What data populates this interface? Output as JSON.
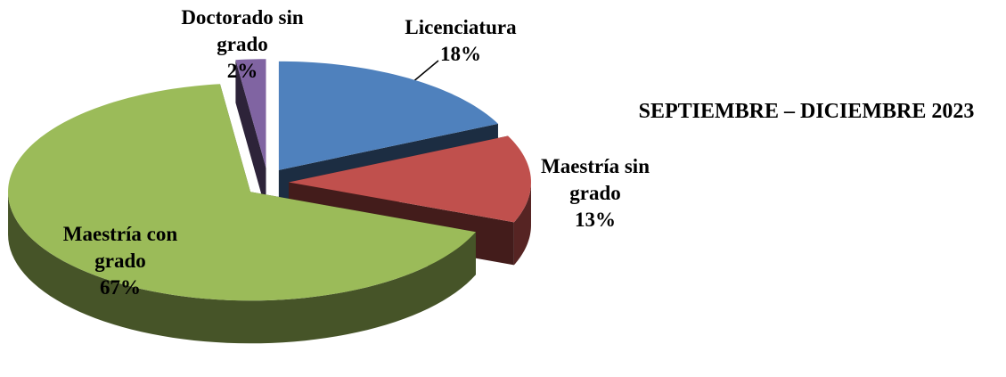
{
  "chart_data": {
    "type": "pie",
    "title": "SEPTIEMBRE – DICIEMBRE 2023",
    "categories": [
      "Licenciatura",
      "Maestría sin grado",
      "Maestría con grado",
      "Doctorado sin grado"
    ],
    "values": [
      18,
      13,
      67,
      2
    ],
    "value_labels": [
      "18%",
      "13%",
      "67%",
      "2%"
    ],
    "colors": [
      "#4f81bd",
      "#c0504d",
      "#9bbb59",
      "#8064a2"
    ]
  }
}
